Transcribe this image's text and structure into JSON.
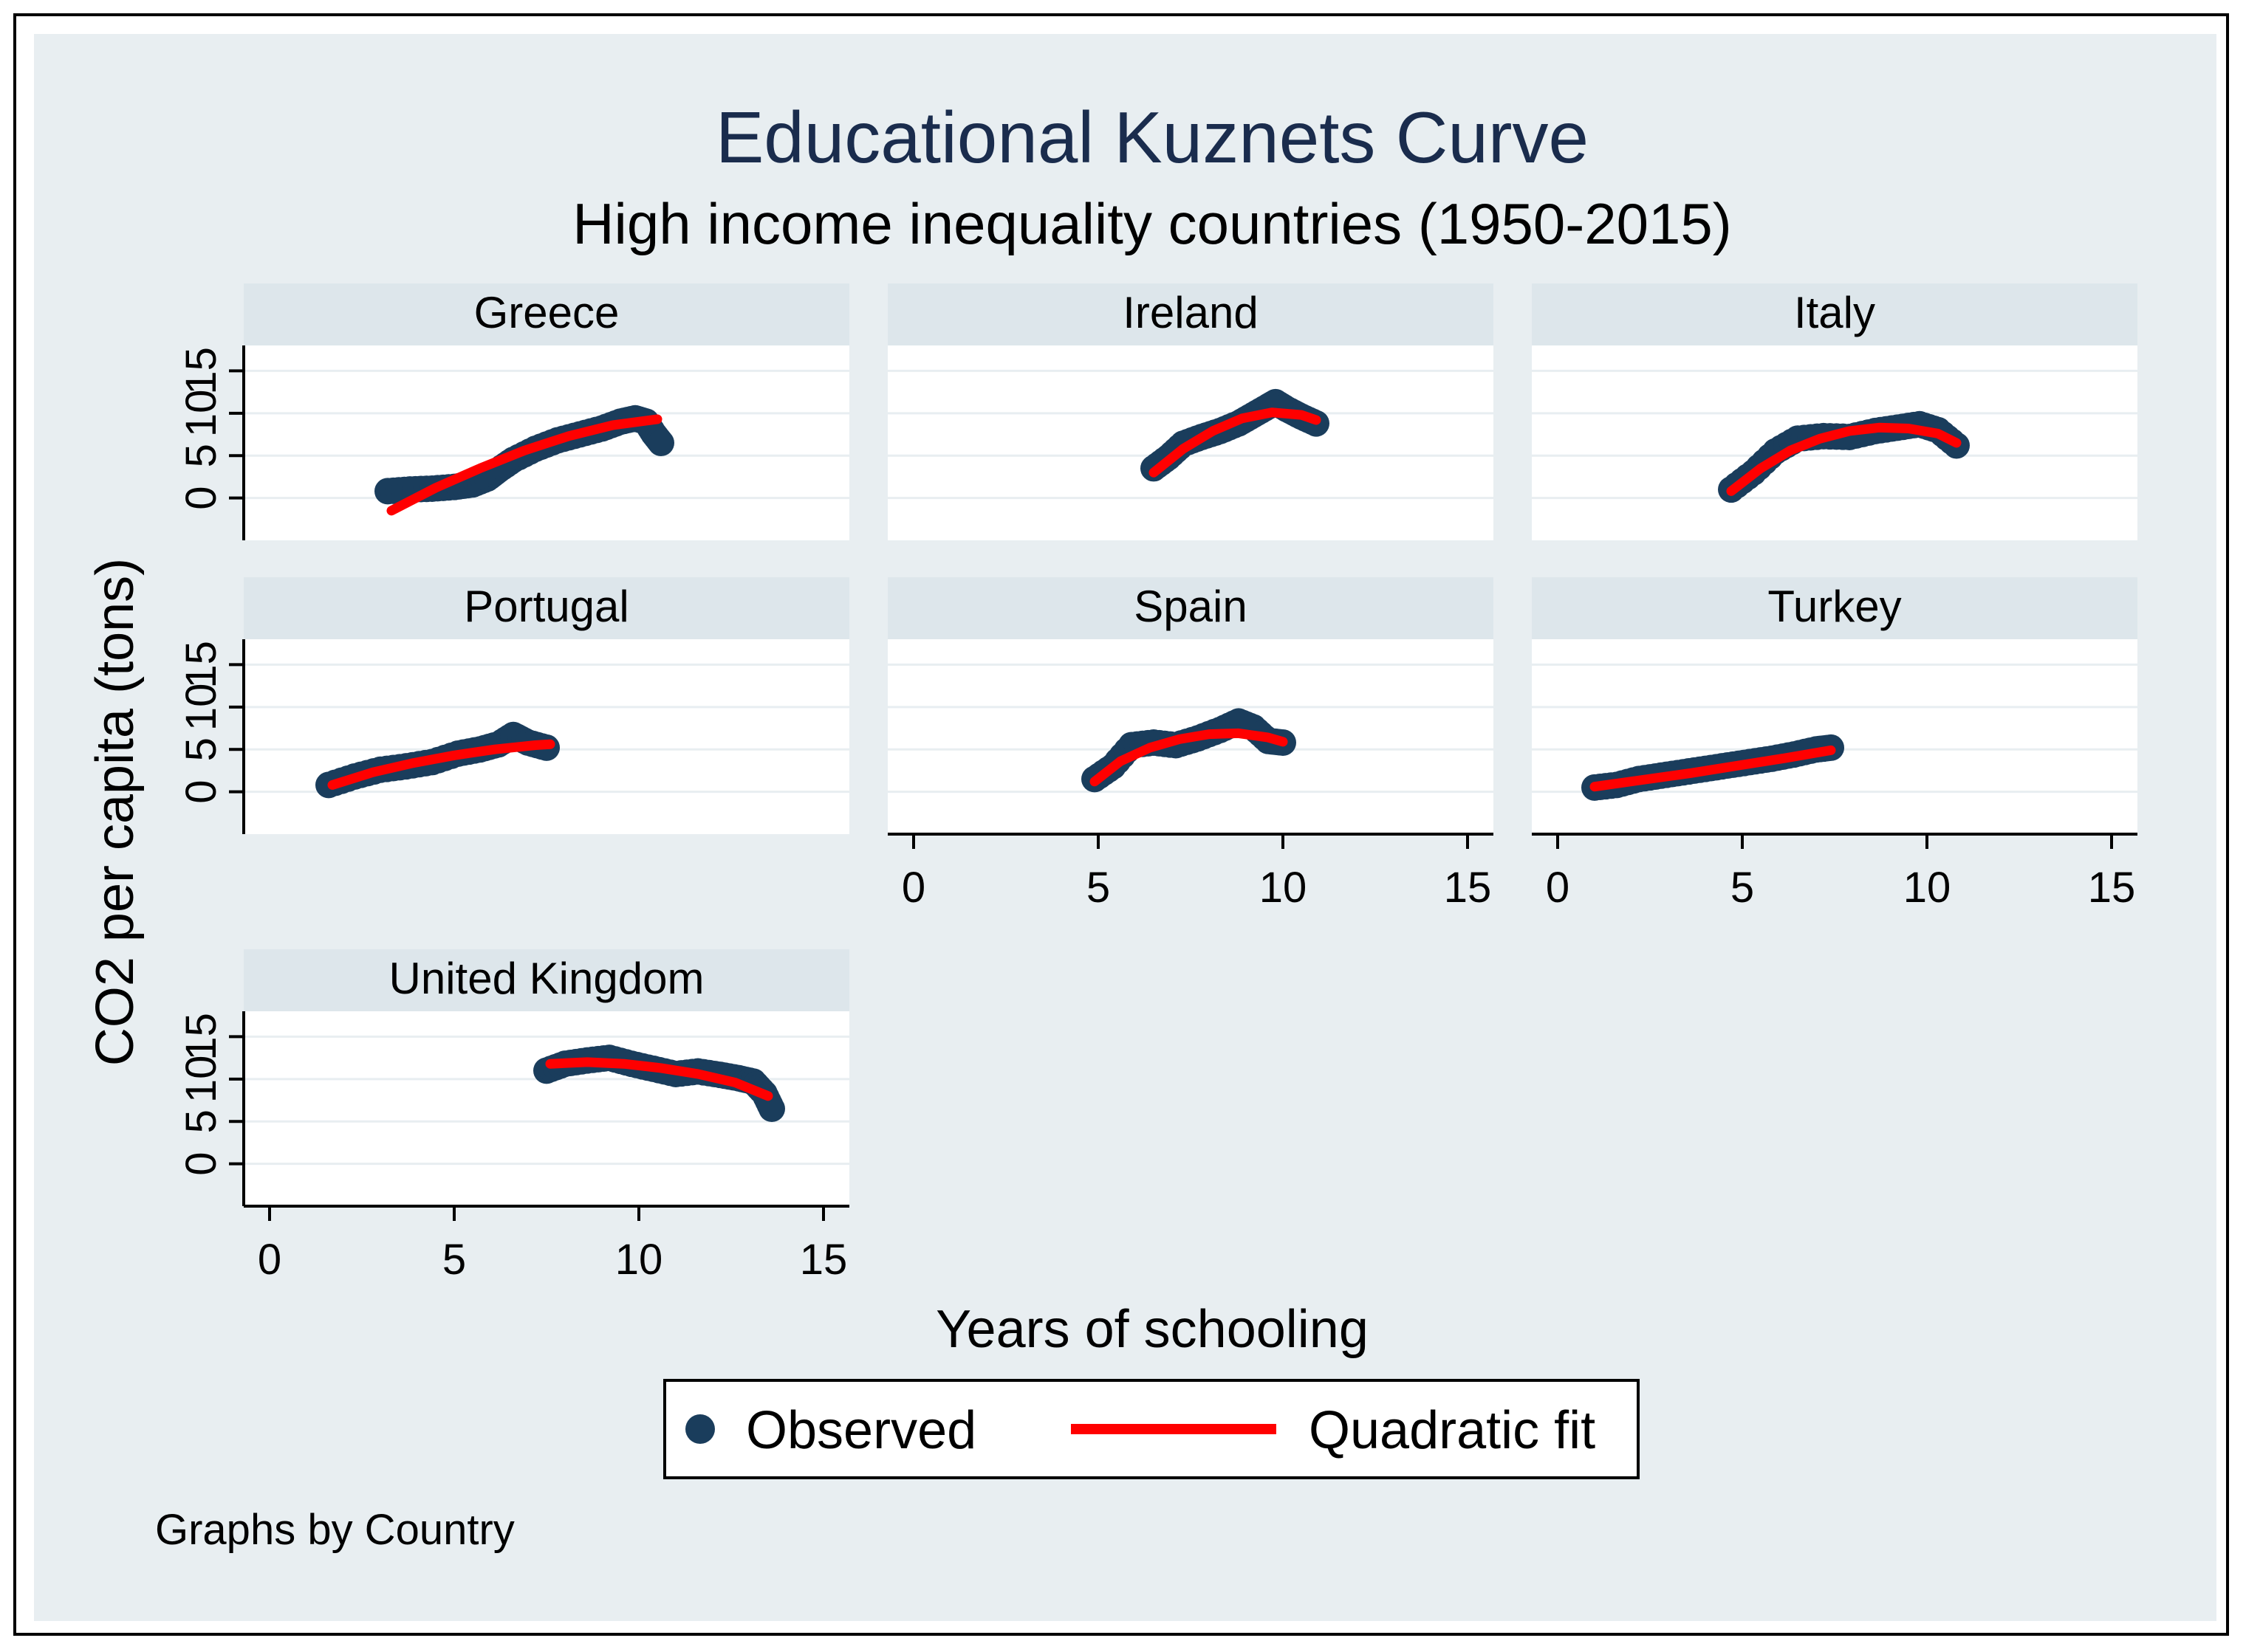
{
  "chart_data": {
    "type": "scatter",
    "title": "Educational Kuznets Curve",
    "subtitle": "High income inequality countries (1950-2015)",
    "xlabel": "Years of schooling",
    "ylabel": "CO2 per capita (tons)",
    "xlim": [
      -0.7,
      15.7
    ],
    "ylim": [
      -5,
      18
    ],
    "xticks": [
      "0",
      "5",
      "10",
      "15"
    ],
    "yticks": [
      "0",
      "5",
      "10",
      "15"
    ],
    "note": "Graphs by Country",
    "legend": {
      "position": "bottom",
      "items": [
        {
          "label": "Observed",
          "kind": "marker",
          "color": "#1a3d5c"
        },
        {
          "label": "Quadratic fit",
          "kind": "line",
          "color": "#ff0000"
        }
      ]
    },
    "series": [
      {
        "name": "Greece",
        "observed": [
          [
            3.2,
            0.8
          ],
          [
            3.8,
            1.0
          ],
          [
            4.4,
            1.1
          ],
          [
            5.0,
            1.3
          ],
          [
            5.5,
            1.6
          ],
          [
            5.9,
            2.3
          ],
          [
            6.2,
            3.3
          ],
          [
            6.6,
            4.5
          ],
          [
            7.2,
            5.8
          ],
          [
            7.8,
            6.8
          ],
          [
            8.4,
            7.5
          ],
          [
            9.0,
            8.2
          ],
          [
            9.5,
            9.0
          ],
          [
            9.9,
            9.4
          ],
          [
            10.2,
            9.0
          ],
          [
            10.4,
            7.6
          ],
          [
            10.6,
            6.5
          ]
        ],
        "fit": [
          [
            3.3,
            -1.5
          ],
          [
            4.5,
            1.2
          ],
          [
            5.7,
            3.5
          ],
          [
            6.9,
            5.6
          ],
          [
            8.1,
            7.3
          ],
          [
            9.3,
            8.6
          ],
          [
            10.5,
            9.3
          ]
        ]
      },
      {
        "name": "Ireland",
        "observed": [
          [
            6.5,
            3.5
          ],
          [
            6.9,
            4.8
          ],
          [
            7.3,
            6.4
          ],
          [
            7.8,
            7.2
          ],
          [
            8.3,
            7.9
          ],
          [
            8.8,
            8.8
          ],
          [
            9.2,
            9.8
          ],
          [
            9.6,
            10.8
          ],
          [
            9.8,
            11.3
          ],
          [
            10.1,
            10.5
          ],
          [
            10.5,
            9.6
          ],
          [
            10.9,
            8.8
          ]
        ],
        "fit": [
          [
            6.5,
            3.0
          ],
          [
            7.3,
            5.8
          ],
          [
            8.1,
            7.9
          ],
          [
            8.9,
            9.4
          ],
          [
            9.7,
            10.1
          ],
          [
            10.5,
            9.8
          ],
          [
            10.9,
            9.2
          ]
        ]
      },
      {
        "name": "Italy",
        "observed": [
          [
            4.7,
            1.0
          ],
          [
            5.3,
            3.0
          ],
          [
            5.9,
            5.5
          ],
          [
            6.5,
            7.0
          ],
          [
            7.2,
            7.3
          ],
          [
            7.9,
            7.2
          ],
          [
            8.6,
            7.9
          ],
          [
            9.2,
            8.3
          ],
          [
            9.8,
            8.7
          ],
          [
            10.3,
            8.0
          ],
          [
            10.8,
            6.2
          ]
        ],
        "fit": [
          [
            4.7,
            0.8
          ],
          [
            5.5,
            3.5
          ],
          [
            6.3,
            5.6
          ],
          [
            7.1,
            7.0
          ],
          [
            7.9,
            7.9
          ],
          [
            8.7,
            8.3
          ],
          [
            9.5,
            8.2
          ],
          [
            10.3,
            7.6
          ],
          [
            10.8,
            6.5
          ]
        ]
      },
      {
        "name": "Portugal",
        "observed": [
          [
            1.6,
            0.8
          ],
          [
            2.3,
            1.8
          ],
          [
            3.0,
            2.6
          ],
          [
            3.7,
            3.0
          ],
          [
            4.4,
            3.5
          ],
          [
            5.1,
            4.5
          ],
          [
            5.7,
            5.0
          ],
          [
            6.2,
            5.6
          ],
          [
            6.6,
            6.7
          ],
          [
            7.0,
            5.8
          ],
          [
            7.5,
            5.2
          ]
        ],
        "fit": [
          [
            1.7,
            0.8
          ],
          [
            2.8,
            2.3
          ],
          [
            3.9,
            3.4
          ],
          [
            5.0,
            4.3
          ],
          [
            6.1,
            5.0
          ],
          [
            7.2,
            5.5
          ],
          [
            7.6,
            5.6
          ]
        ]
      },
      {
        "name": "Spain",
        "observed": [
          [
            4.9,
            1.5
          ],
          [
            5.4,
            3.0
          ],
          [
            5.9,
            5.5
          ],
          [
            6.5,
            5.8
          ],
          [
            7.1,
            5.5
          ],
          [
            7.7,
            6.3
          ],
          [
            8.3,
            7.3
          ],
          [
            8.8,
            8.3
          ],
          [
            9.2,
            7.6
          ],
          [
            9.6,
            6.0
          ],
          [
            10.0,
            5.8
          ]
        ],
        "fit": [
          [
            4.9,
            1.2
          ],
          [
            5.6,
            3.6
          ],
          [
            6.4,
            5.2
          ],
          [
            7.2,
            6.2
          ],
          [
            8.0,
            6.8
          ],
          [
            8.8,
            6.9
          ],
          [
            9.6,
            6.4
          ],
          [
            10.0,
            5.9
          ]
        ]
      },
      {
        "name": "Turkey",
        "observed": [
          [
            1.0,
            0.5
          ],
          [
            1.6,
            0.8
          ],
          [
            2.2,
            1.5
          ],
          [
            2.8,
            1.9
          ],
          [
            3.4,
            2.3
          ],
          [
            4.0,
            2.7
          ],
          [
            4.6,
            3.1
          ],
          [
            5.2,
            3.5
          ],
          [
            5.8,
            3.9
          ],
          [
            6.4,
            4.4
          ],
          [
            7.0,
            5.0
          ],
          [
            7.4,
            5.2
          ]
        ],
        "fit": [
          [
            1.0,
            0.6
          ],
          [
            2.3,
            1.4
          ],
          [
            3.6,
            2.2
          ],
          [
            4.9,
            3.1
          ],
          [
            6.2,
            4.0
          ],
          [
            7.4,
            4.9
          ]
        ]
      },
      {
        "name": "United Kingdom",
        "observed": [
          [
            7.5,
            11.0
          ],
          [
            8.0,
            11.8
          ],
          [
            8.6,
            12.2
          ],
          [
            9.2,
            12.5
          ],
          [
            9.8,
            11.8
          ],
          [
            10.4,
            11.2
          ],
          [
            11.0,
            10.6
          ],
          [
            11.6,
            10.9
          ],
          [
            12.2,
            10.5
          ],
          [
            12.7,
            10.1
          ],
          [
            13.1,
            9.7
          ],
          [
            13.4,
            8.3
          ],
          [
            13.6,
            6.5
          ]
        ],
        "fit": [
          [
            7.6,
            11.8
          ],
          [
            8.6,
            12.0
          ],
          [
            9.6,
            11.8
          ],
          [
            10.6,
            11.3
          ],
          [
            11.6,
            10.6
          ],
          [
            12.6,
            9.6
          ],
          [
            13.5,
            8.0
          ]
        ]
      }
    ]
  }
}
